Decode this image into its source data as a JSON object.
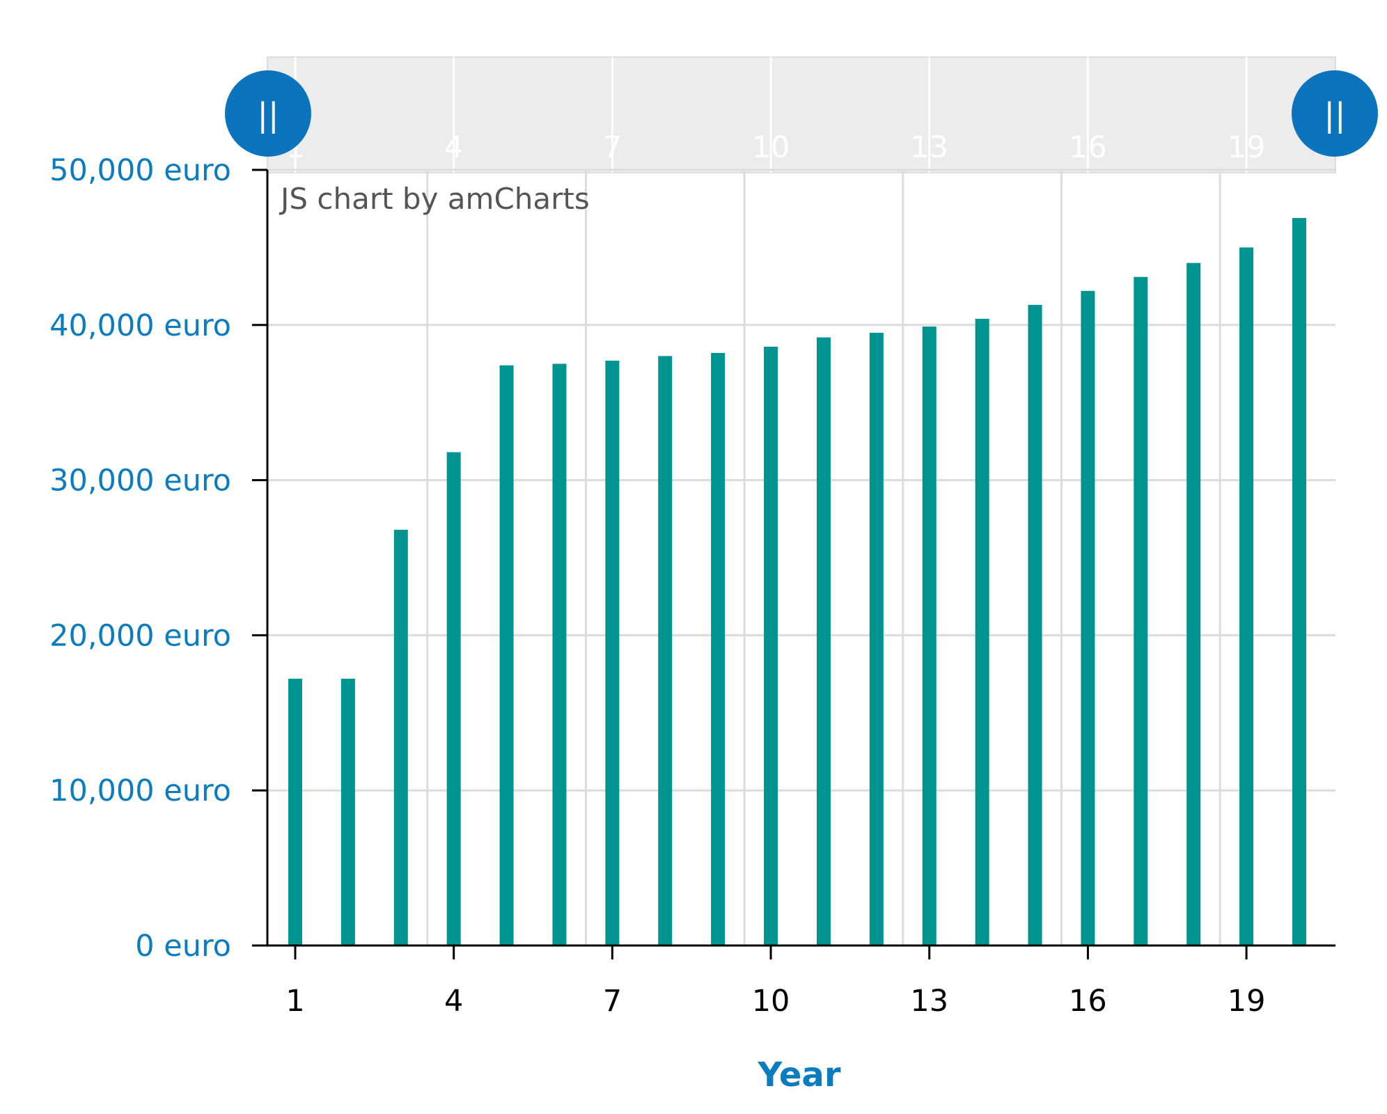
{
  "credit": "JS chart by amCharts",
  "colors": {
    "bar": "#009490",
    "axis_label": "#0b7cc0",
    "scroll_handle": "#0b74bc"
  },
  "icons": {
    "left_handle": "grip-icon",
    "right_handle": "grip-icon",
    "grip_glyph": "||"
  },
  "chart_data": {
    "type": "bar",
    "title": "",
    "xlabel": "Year",
    "ylabel": "",
    "categories": [
      "1",
      "2",
      "3",
      "4",
      "5",
      "6",
      "7",
      "8",
      "9",
      "10",
      "11",
      "12",
      "13",
      "14",
      "15",
      "16",
      "17",
      "18",
      "19",
      "20"
    ],
    "series": [
      {
        "values": [
          17200,
          17200,
          26800,
          31800,
          37400,
          37500,
          37700,
          38000,
          38200,
          38600,
          39200,
          39500,
          39900,
          40400,
          41300,
          42200,
          43100,
          44000,
          45000,
          46900
        ]
      }
    ],
    "ylim": [
      0,
      50000
    ],
    "y_ticks": [
      0,
      10000,
      20000,
      30000,
      40000,
      50000
    ],
    "y_tick_labels": [
      "0 euro",
      "10,000 euro",
      "20,000 euro",
      "30,000 euro",
      "40,000 euro",
      "50,000 euro"
    ],
    "x_tick_labels": [
      "1",
      "4",
      "7",
      "10",
      "13",
      "16",
      "19"
    ],
    "grid": true,
    "legend": "none",
    "scrollbar": true
  }
}
